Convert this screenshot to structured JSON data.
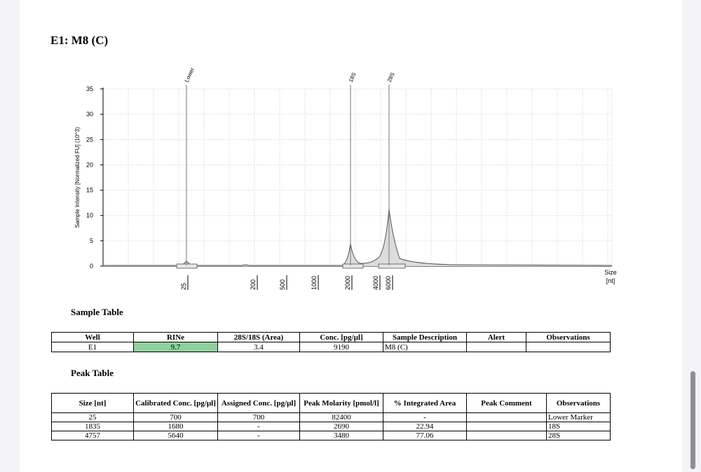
{
  "sample_title": "E1: M8 (C)",
  "chart_data": {
    "type": "line",
    "ylabel": "Sample Intensity [Normalized FU] (10^3)",
    "xlabel": "Size\n[nt]",
    "y_ticks": [
      0,
      5,
      10,
      15,
      20,
      25,
      30,
      35
    ],
    "ylim": [
      0,
      35
    ],
    "x_tick_labels": [
      "25",
      "200",
      "500",
      "1000",
      "2000",
      "4000",
      "6000"
    ],
    "peaks": [
      {
        "label": "Lower",
        "size_nt": 25,
        "height": 1.0
      },
      {
        "label": "18S",
        "size_nt": 1835,
        "height": 4.5
      },
      {
        "label": "28S",
        "size_nt": 4757,
        "height": 11.3
      }
    ],
    "grid": true,
    "colors": {
      "trace": "#555555",
      "fill": "#dcdcdc",
      "grid": "#c8c8c8"
    }
  },
  "sample_table": {
    "title": "Sample Table",
    "headers": [
      "Well",
      "RINe",
      "28S/18S (Area)",
      "Conc. [pg/µl]",
      "Sample Description",
      "Alert",
      "Observations"
    ],
    "rows": [
      [
        "E1",
        "9.7",
        "3.4",
        "9190",
        "M8 (C)",
        "",
        ""
      ]
    ],
    "highlight_color": "#8fd19e"
  },
  "peak_table": {
    "title": "Peak Table",
    "headers": [
      "Size [nt]",
      "Calibrated Conc. [pg/µl]",
      "Assigned Conc. [pg/µl]",
      "Peak Molarity [pmol/l]",
      "% Integrated Area",
      "Peak Comment",
      "Observations"
    ],
    "rows": [
      [
        "25",
        "700",
        "700",
        "82400",
        "-",
        "",
        "Lower Marker"
      ],
      [
        "1835",
        "1680",
        "-",
        "2690",
        "22.94",
        "",
        "18S"
      ],
      [
        "4757",
        "5640",
        "-",
        "3480",
        "77.06",
        "",
        "28S"
      ]
    ]
  }
}
